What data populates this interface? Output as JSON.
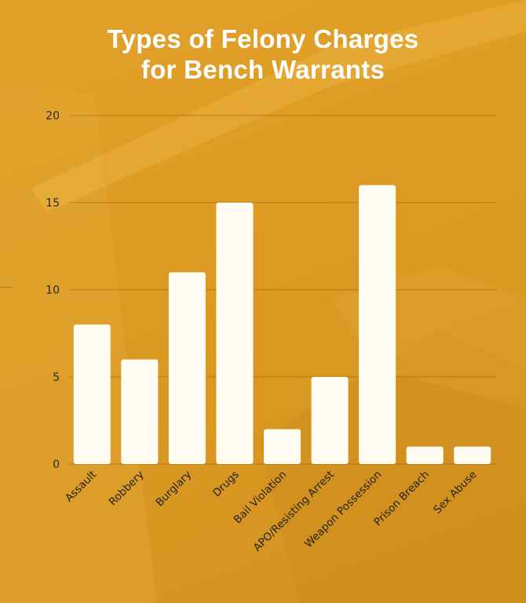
{
  "title_line1": "Types of Felony Charges",
  "title_line2": "for Bench Warrants",
  "colors": {
    "background": "#de9d25",
    "bar": "#fffdf2",
    "title": "#ffffff",
    "gridline": "#8a5e12"
  },
  "chart_data": {
    "type": "bar",
    "title": "Types of Felony Charges for Bench Warrants",
    "xlabel": "",
    "ylabel": "",
    "categories": [
      "Assault",
      "Robbery",
      "Burglary",
      "Drugs",
      "Bail Violation",
      "APO/Resisting Arrest",
      "Weapon Possession",
      "Prison Breach",
      "Sex Abuse"
    ],
    "values": [
      8,
      6,
      11,
      15,
      2,
      5,
      16,
      1,
      1
    ],
    "ylim": [
      0,
      20
    ],
    "yticks": [
      0,
      5,
      10,
      15,
      20
    ],
    "grid": true,
    "legend": "none"
  }
}
